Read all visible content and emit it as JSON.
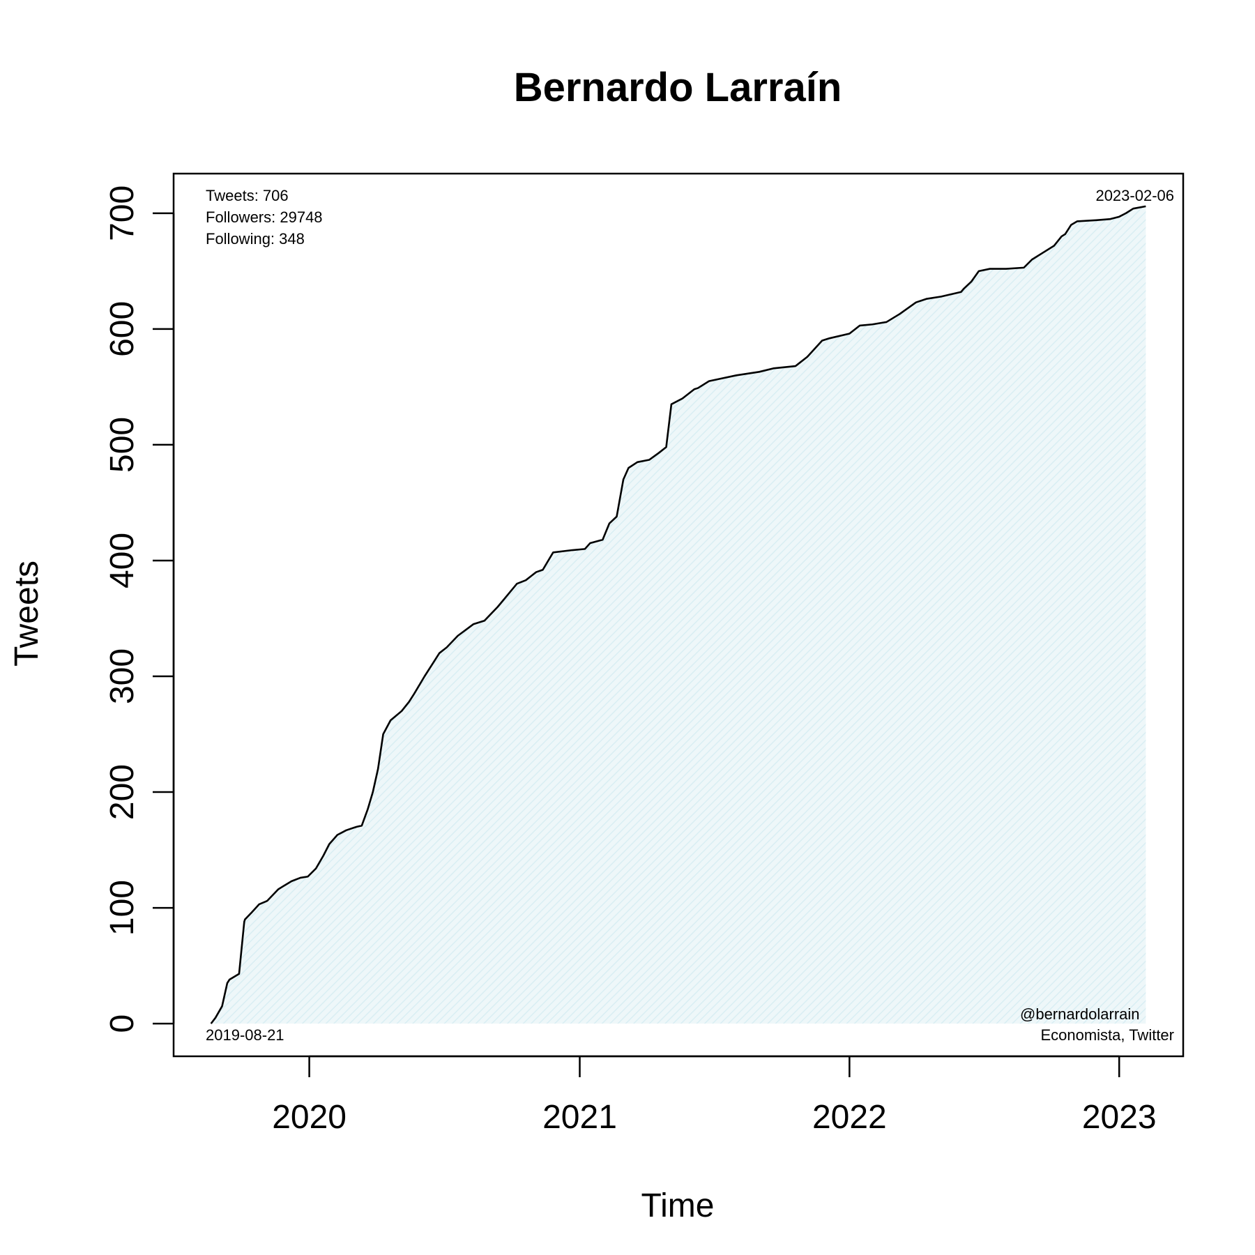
{
  "chart_data": {
    "type": "area",
    "title": "Bernardo Larraín",
    "xlabel": "Time",
    "ylabel": "Tweets",
    "xlim": [
      "2019-08-21",
      "2023-02-06"
    ],
    "ylim": [
      0,
      706
    ],
    "x_ticks": [
      "2020-01-01",
      "2021-01-01",
      "2022-01-01",
      "2023-01-01"
    ],
    "x_tick_labels": [
      "2020",
      "2021",
      "2022",
      "2023"
    ],
    "y_ticks": [
      0,
      100,
      200,
      300,
      400,
      500,
      600,
      700
    ],
    "y_tick_labels": [
      "0",
      "100",
      "200",
      "300",
      "400",
      "500",
      "600",
      "700"
    ],
    "grid": false,
    "fill_color": "#e6f3f6",
    "line_color": "#000000",
    "annotations": {
      "stats": [
        "Tweets: 706",
        "Followers: 29748",
        "Following: 348"
      ],
      "start_date": "2019-08-21",
      "end_date": "2023-02-06",
      "handle": "@bernardolarrain",
      "source": "Economista, Twitter"
    },
    "series": [
      {
        "x": [
          "2019-08-21",
          "2019-08-27",
          "2019-09-05",
          "2019-09-12",
          "2019-09-15",
          "2019-09-28",
          "2019-10-05",
          "2019-10-06",
          "2019-10-15",
          "2019-10-25",
          "2019-11-05",
          "2019-11-20",
          "2019-11-25",
          "2019-12-08",
          "2019-12-20",
          "2019-12-30",
          "2020-01-10",
          "2020-01-20",
          "2020-01-28",
          "2020-02-08",
          "2020-02-20",
          "2020-03-05",
          "2020-03-12",
          "2020-03-20",
          "2020-03-27",
          "2020-04-03",
          "2020-04-10",
          "2020-04-20",
          "2020-05-05",
          "2020-05-15",
          "2020-05-22",
          "2020-06-05",
          "2020-06-15",
          "2020-06-25",
          "2020-07-05",
          "2020-07-20",
          "2020-08-10",
          "2020-08-25",
          "2020-09-12",
          "2020-09-25",
          "2020-10-08",
          "2020-10-20",
          "2020-11-03",
          "2020-11-12",
          "2020-11-26",
          "2020-12-22",
          "2021-01-08",
          "2021-01-15",
          "2021-02-01",
          "2021-02-10",
          "2021-02-20",
          "2021-03-01",
          "2021-03-08",
          "2021-03-20",
          "2021-04-05",
          "2021-04-18",
          "2021-04-28",
          "2021-05-05",
          "2021-05-20",
          "2021-06-05",
          "2021-06-10",
          "2021-06-25",
          "2021-07-10",
          "2021-08-01",
          "2021-09-01",
          "2021-09-20",
          "2021-10-20",
          "2021-11-05",
          "2021-11-25",
          "2021-12-05",
          "2022-01-01",
          "2022-01-15",
          "2022-02-01",
          "2022-02-20",
          "2022-03-10",
          "2022-04-01",
          "2022-04-15",
          "2022-05-05",
          "2022-06-01",
          "2022-06-05",
          "2022-06-15",
          "2022-06-25",
          "2022-07-10",
          "2022-08-01",
          "2022-08-25",
          "2022-09-05",
          "2022-09-20",
          "2022-10-05",
          "2022-10-15",
          "2022-10-20",
          "2022-10-28",
          "2022-11-05",
          "2022-12-01",
          "2022-12-20",
          "2023-01-01",
          "2023-01-10",
          "2023-01-20",
          "2023-02-06"
        ],
        "y": [
          0,
          5,
          15,
          35,
          38,
          43,
          88,
          90,
          96,
          103,
          106,
          116,
          118,
          123,
          126,
          127,
          134,
          145,
          155,
          163,
          167,
          170,
          171,
          185,
          200,
          220,
          250,
          262,
          270,
          278,
          285,
          300,
          310,
          320,
          325,
          335,
          345,
          348,
          360,
          370,
          380,
          383,
          390,
          392,
          407,
          409,
          410,
          415,
          418,
          432,
          438,
          470,
          480,
          485,
          487,
          493,
          498,
          535,
          540,
          548,
          549,
          555,
          557,
          560,
          563,
          566,
          568,
          576,
          590,
          592,
          596,
          603,
          604,
          606,
          613,
          623,
          626,
          628,
          632,
          635,
          641,
          650,
          652,
          652,
          653,
          660,
          666,
          672,
          680,
          682,
          690,
          693,
          694,
          695,
          697,
          700,
          704,
          706
        ]
      }
    ]
  }
}
